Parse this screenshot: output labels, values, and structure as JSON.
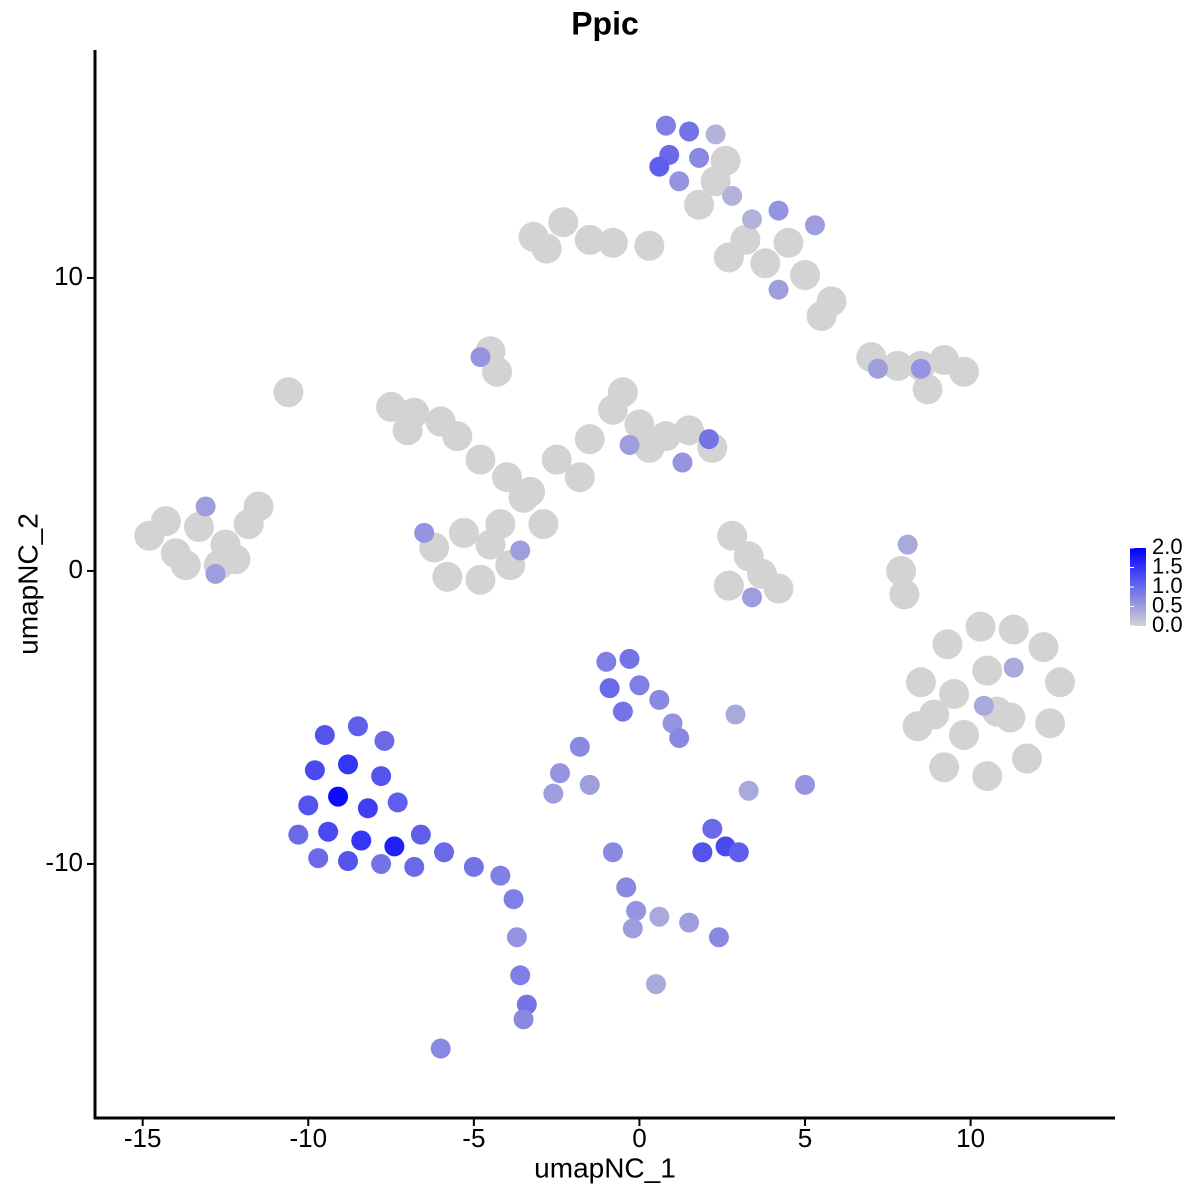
{
  "chart_data": {
    "type": "scatter",
    "title": "Ppic",
    "x_label": "umapNC_1",
    "y_label": "umapNC_2",
    "xlim": [
      -16.44,
      14.36
    ],
    "ylim": [
      -18.67,
      17.78
    ],
    "xticks": [
      -15,
      -10,
      -5,
      0,
      5,
      10
    ],
    "yticks": [
      -10,
      0,
      10
    ],
    "grid": false,
    "color_low": "#d3d3d3",
    "color_high": "#0000ff",
    "colorlim": [
      0,
      2
    ],
    "colorbar_ticks": [
      {
        "value": 0,
        "label": "0.0"
      },
      {
        "value": 0.5,
        "label": "0.5"
      },
      {
        "value": 1,
        "label": "1.0"
      },
      {
        "value": 1.5,
        "label": "1.5"
      },
      {
        "value": 2,
        "label": "2.0"
      }
    ],
    "x": [
      -14.8,
      -14,
      -13.3,
      -12.5,
      -11.8,
      -11.5,
      -13.7,
      -12.7,
      -14.3,
      -12.2,
      -7.5,
      -6.8,
      -6,
      -7,
      -5.5,
      -4.8,
      -4,
      -3.5,
      -6.2,
      -5.3,
      -4.5,
      -5.8,
      -4.8,
      -3.9,
      -4.2,
      -2.5,
      -1.5,
      -0.8,
      -0.5,
      0,
      0.8,
      1.5,
      2.2,
      -1.8,
      0.3,
      -2.9,
      -3.3,
      -4.5,
      -4.3,
      -3.2,
      -2.3,
      -1.5,
      -0.8,
      -2.8,
      0.3,
      2.6,
      2.3,
      1.8,
      4.5,
      3.8,
      5,
      5.8,
      5.5,
      2.7,
      3.2,
      7,
      7.8,
      8.5,
      9.2,
      9.8,
      8.7,
      2.8,
      3.3,
      3.7,
      2.7,
      4.2,
      7.9,
      8,
      8.5,
      9.3,
      10.3,
      11.3,
      12.2,
      12.7,
      12.4,
      11.7,
      10.5,
      9.2,
      8.4,
      9.5,
      10.5,
      11.2,
      9.8,
      8.9,
      10.8,
      -10.6,
      0.8,
      1.5,
      2.3,
      0.9,
      1.8,
      1.2,
      2.8,
      0.6,
      3.4,
      4.2,
      5.3,
      4.2,
      -13.1,
      -12.8,
      -4.8,
      -6.5,
      -3.6,
      1.3,
      2.1,
      -0.3,
      8.1,
      3.4,
      11.3,
      10.4,
      7.2,
      8.5,
      -9.5,
      -8.5,
      -7.7,
      -9.8,
      -8.8,
      -7.8,
      -10,
      -9.1,
      -8.2,
      -7.3,
      -10.3,
      -9.4,
      -8.4,
      -7.4,
      -6.6,
      -9.7,
      -8.8,
      -7.8,
      -6.8,
      -5.9,
      -5,
      -4.2,
      -3.8,
      -3.7,
      -3.6,
      -3.4,
      -3.5,
      -6,
      -1,
      -0.3,
      -0.9,
      0,
      0.6,
      -0.5,
      1,
      1.2,
      -2.4,
      -1.8,
      -1.5,
      -2.6,
      1.9,
      2.6,
      2.2,
      3,
      -0.8,
      -0.4,
      -0.1,
      0.6,
      1.5,
      2.4,
      -0.2,
      5,
      2.9,
      3.3,
      0.5
    ],
    "y": [
      1.2,
      0.6,
      1.5,
      0.9,
      1.6,
      2.2,
      0.2,
      0.2,
      1.7,
      0.4,
      5.6,
      5.4,
      5.1,
      4.8,
      4.6,
      3.8,
      3.2,
      2.5,
      0.8,
      1.3,
      0.9,
      -0.2,
      -0.3,
      0.2,
      1.6,
      3.8,
      4.5,
      5.5,
      6.1,
      5,
      4.6,
      4.8,
      4.2,
      3.2,
      4.2,
      1.6,
      2.7,
      7.5,
      6.8,
      11.4,
      11.9,
      11.3,
      11.2,
      11,
      11.1,
      14,
      13.3,
      12.5,
      11.2,
      10.5,
      10.1,
      9.2,
      8.7,
      10.7,
      11.3,
      7.3,
      7,
      7,
      7.2,
      6.8,
      6.2,
      1.2,
      0.5,
      -0.1,
      -0.5,
      -0.6,
      0,
      -0.8,
      -3.8,
      -2.5,
      -1.9,
      -2,
      -2.6,
      -3.8,
      -5.2,
      -6.4,
      -7,
      -6.7,
      -5.3,
      -4.2,
      -3.4,
      -5,
      -5.6,
      -4.9,
      -4.8,
      6.1,
      15.2,
      15,
      14.9,
      14.2,
      14.1,
      13.3,
      12.8,
      13.8,
      12,
      12.3,
      11.8,
      9.6,
      2.2,
      -0.1,
      7.3,
      1.3,
      0.7,
      3.7,
      4.5,
      4.3,
      0.9,
      -0.9,
      -3.3,
      -4.6,
      6.9,
      6.9,
      -5.6,
      -5.3,
      -5.8,
      -6.8,
      -6.6,
      -7,
      -8,
      -7.7,
      -8.1,
      -7.9,
      -9,
      -8.9,
      -9.2,
      -9.4,
      -9,
      -9.8,
      -9.9,
      -10,
      -10.1,
      -9.6,
      -10.1,
      -10.4,
      -11.2,
      -12.5,
      -13.8,
      -14.8,
      -15.3,
      -16.3,
      -3.1,
      -3,
      -4,
      -3.9,
      -4.4,
      -4.8,
      -5.2,
      -5.7,
      -6.9,
      -6,
      -7.3,
      -7.6,
      -9.6,
      -9.4,
      -8.8,
      -9.6,
      -9.6,
      -10.8,
      -11.6,
      -11.8,
      -12,
      -12.5,
      -12.2,
      -7.3,
      -4.9,
      -7.5,
      -14.1
    ],
    "color_values": [
      0,
      0,
      0,
      0,
      0,
      0,
      0,
      0,
      0,
      0,
      0,
      0,
      0,
      0,
      0,
      0,
      0,
      0,
      0,
      0,
      0,
      0,
      0,
      0,
      0,
      0,
      0,
      0,
      0,
      0,
      0,
      0,
      0,
      0,
      0,
      0,
      0,
      0,
      0,
      0,
      0,
      0,
      0,
      0,
      0,
      0,
      0,
      0,
      0,
      0,
      0,
      0,
      0,
      0,
      0,
      0,
      0,
      0,
      0,
      0,
      0,
      0,
      0,
      0,
      0,
      0,
      0,
      0,
      0,
      0,
      0,
      0,
      0,
      0,
      0,
      0,
      0,
      0,
      0,
      0,
      0,
      0,
      0,
      0,
      0,
      0,
      0.8,
      0.9,
      0.3,
      1.0,
      0.7,
      0.6,
      0.3,
      1.1,
      0.3,
      0.6,
      0.5,
      0.5,
      0.5,
      0.5,
      0.6,
      0.6,
      0.5,
      0.6,
      0.9,
      0.5,
      0.4,
      0.5,
      0.4,
      0.4,
      0.5,
      0.6,
      1.2,
      1.1,
      1.0,
      1.3,
      1.5,
      1.2,
      1.2,
      1.9,
      1.4,
      1.1,
      1.0,
      1.3,
      1.5,
      1.7,
      1.1,
      1.0,
      1.2,
      0.9,
      1.0,
      1.0,
      0.9,
      0.8,
      0.8,
      0.6,
      0.8,
      0.9,
      0.7,
      0.7,
      0.8,
      0.9,
      1.0,
      0.8,
      0.7,
      0.9,
      0.6,
      0.7,
      0.6,
      0.7,
      0.5,
      0.5,
      1.2,
      1.3,
      1.0,
      1.1,
      0.7,
      0.7,
      0.6,
      0.4,
      0.5,
      0.7,
      0.5,
      0.6,
      0.4,
      0.4,
      0.4
    ]
  }
}
